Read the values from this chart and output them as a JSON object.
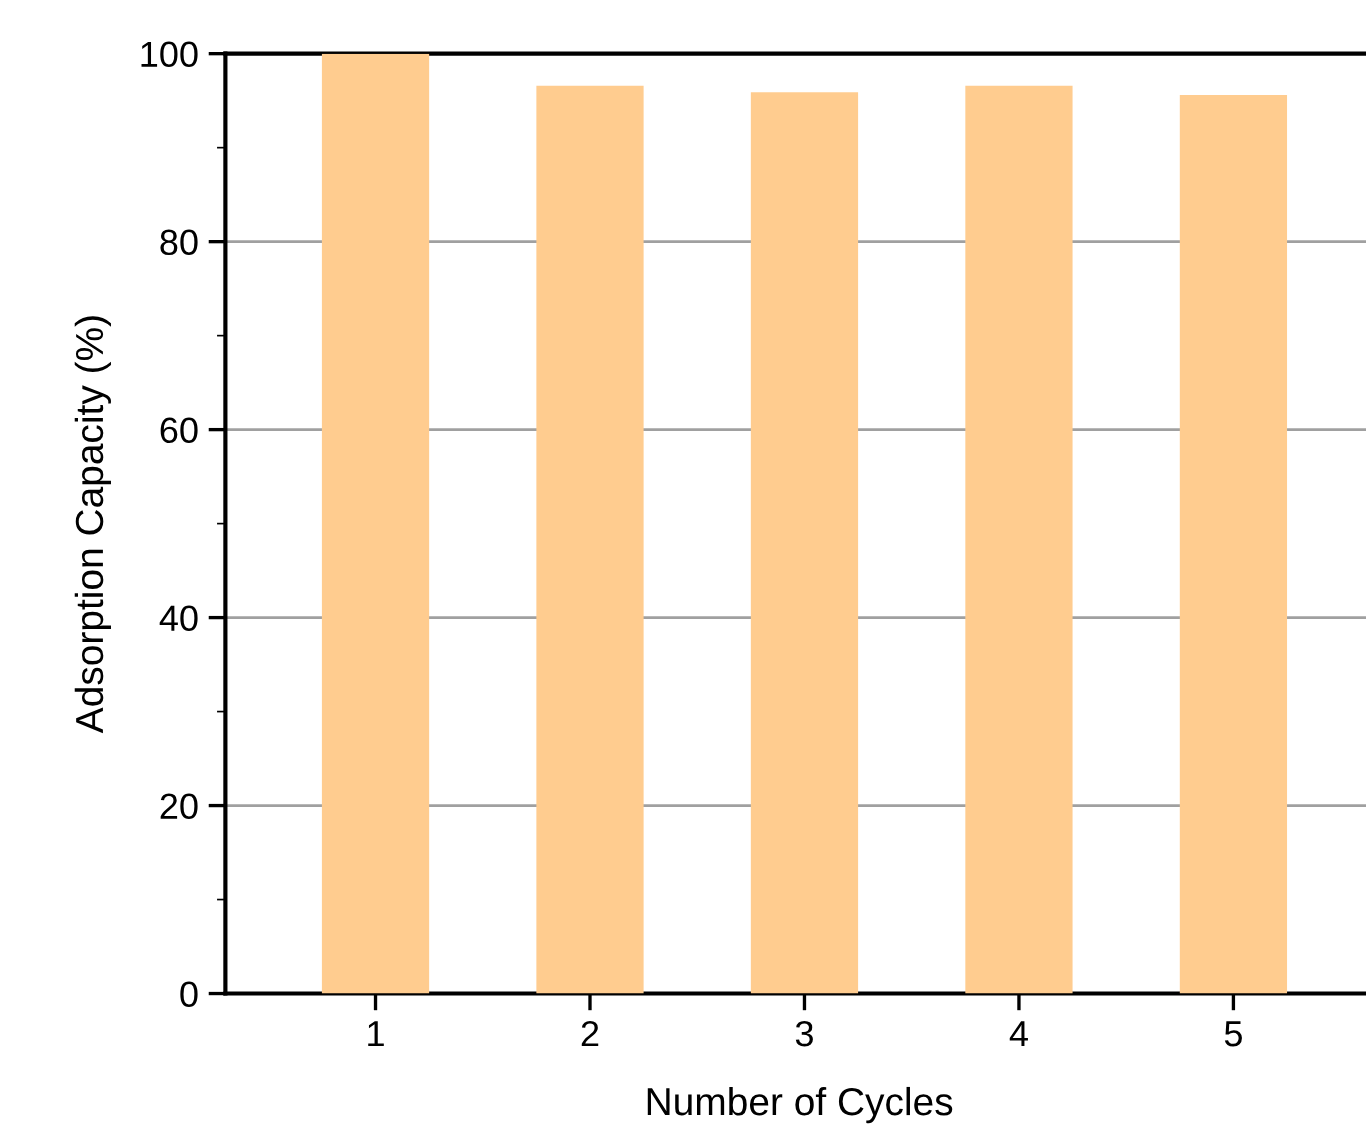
{
  "chart_data": {
    "type": "bar",
    "xlabel": "Number of Cycles",
    "ylabel": "Adsorption Capacity (%)",
    "categories": [
      "1",
      "2",
      "3",
      "4",
      "5"
    ],
    "values": [
      100,
      96.6,
      95.9,
      96.6,
      95.6
    ],
    "color": "#ffcc8f",
    "ylim": [
      0,
      100
    ],
    "yticks": [
      0,
      20,
      40,
      60,
      80,
      100
    ],
    "grid": "y"
  }
}
